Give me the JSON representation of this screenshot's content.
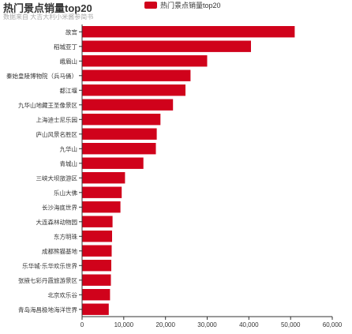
{
  "title": "热门景点销量top20",
  "subtitle": "数据来自 大吉大利小米酱参简书",
  "colors": {
    "bar": "#d0021b",
    "axis": "#333333",
    "grid": "#e6e6e6",
    "text": "#333333"
  },
  "chart_data": {
    "type": "bar",
    "orientation": "horizontal",
    "title": "热门景点销量top20",
    "subtitle": "数据来自 大吉大利小米酱参简书",
    "legend": {
      "entries": [
        "热门景点销量top20"
      ],
      "position": "top-center"
    },
    "xlim": [
      0,
      60000
    ],
    "xticks": [
      "0",
      "10,000",
      "20,000",
      "30,000",
      "40,000",
      "50,000",
      "60,000"
    ],
    "grid": false,
    "categories": [
      "故宫",
      "稻城亚丁",
      "峨眉山",
      "秦始皇陵博物院（兵马俑）",
      "都江堰",
      "九华山地藏王圣像景区",
      "上海迪士尼乐园",
      "庐山风景名胜区",
      "九华山",
      "青城山",
      "三峡大坝旅游区",
      "乐山大佛",
      "长沙海底世界",
      "大连森林动物园",
      "东方明珠",
      "成都熊猫基地",
      "乐华城·乐华欢乐世界",
      "张掖七彩丹霞旅游景区",
      "北京欢乐谷",
      "青岛海昌极地海洋世界"
    ],
    "series": [
      {
        "name": "热门景点销量top20",
        "values": [
          51000,
          40500,
          30000,
          26000,
          24800,
          21800,
          18800,
          17900,
          17700,
          14700,
          10300,
          9500,
          9200,
          7300,
          7200,
          7100,
          7000,
          6900,
          6700,
          6400
        ]
      }
    ]
  }
}
